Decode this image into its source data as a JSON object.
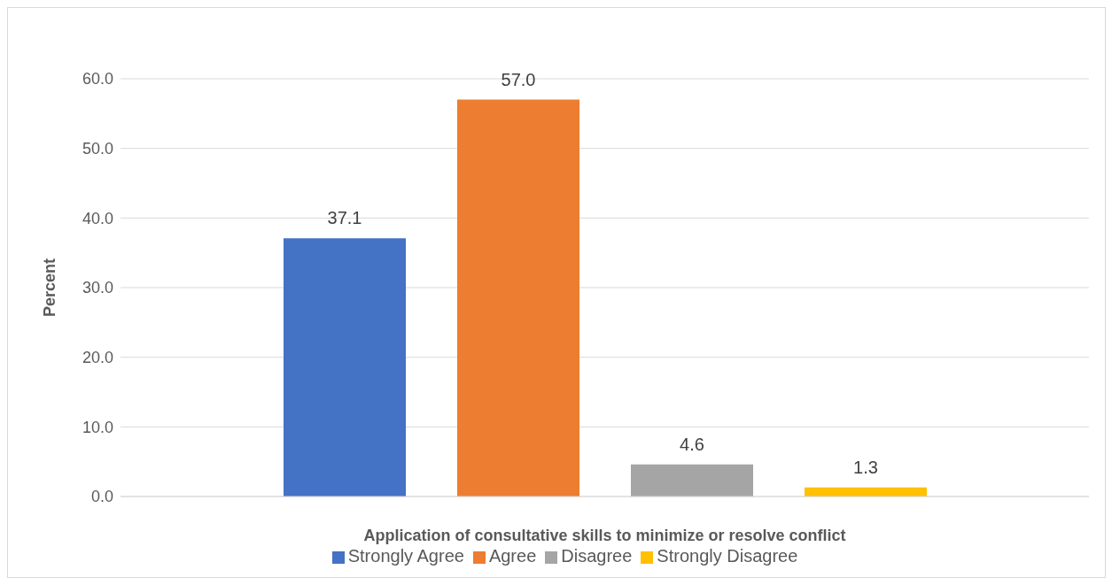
{
  "chart_data": {
    "type": "bar",
    "xlabel": "Application of consultative skills to minimize or resolve conflict",
    "ylabel": "Percent",
    "categories": [
      null
    ],
    "series": [
      {
        "name": "Strongly Agree",
        "color": "#4472c4",
        "values": [
          37.1
        ],
        "value_labels": [
          "37.1"
        ]
      },
      {
        "name": "Agree",
        "color": "#ed7d31",
        "values": [
          57
        ],
        "value_labels": [
          "57.0"
        ]
      },
      {
        "name": "Disagree",
        "color": "#a5a5a5",
        "values": [
          4.6
        ],
        "value_labels": [
          "4.6"
        ]
      },
      {
        "name": "Strongly Disagree",
        "color": "#ffc000",
        "values": [
          1.3
        ],
        "value_labels": [
          "1.3"
        ]
      }
    ],
    "ylim": [
      0,
      60
    ],
    "yticks": [
      {
        "value": 0,
        "label": "0.0"
      },
      {
        "value": 10,
        "label": "10.0"
      },
      {
        "value": 20,
        "label": "20.0"
      },
      {
        "value": 30,
        "label": "30.0"
      },
      {
        "value": 40,
        "label": "40.0"
      },
      {
        "value": 50,
        "label": "50.0"
      },
      {
        "value": 60,
        "label": "60.0"
      }
    ],
    "grid": "y",
    "legend": "bottom"
  }
}
